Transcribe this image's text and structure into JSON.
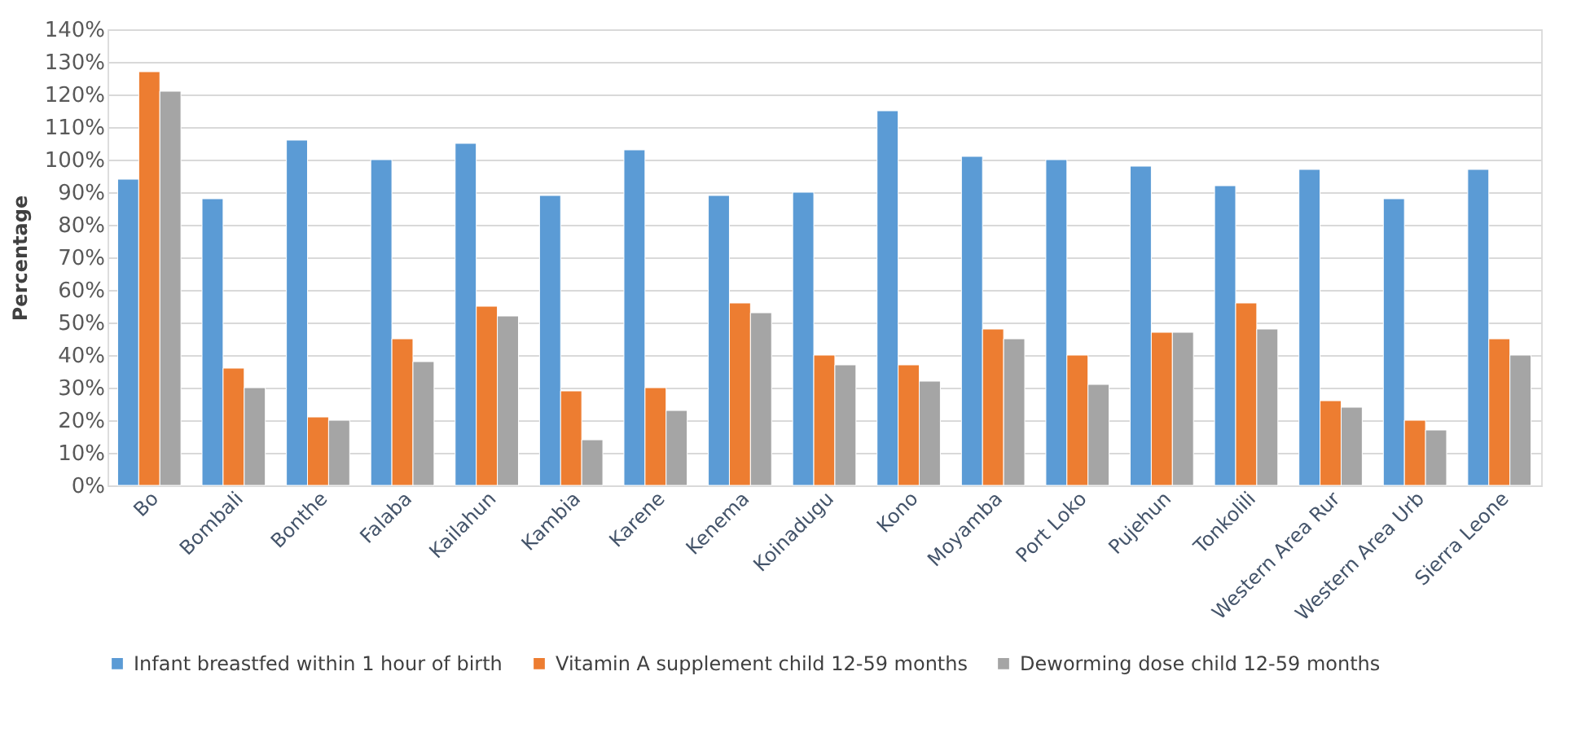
{
  "chart_data": {
    "type": "bar",
    "ylabel": "Percentage",
    "categories": [
      "Bo",
      "Bombali",
      "Bonthe",
      "Falaba",
      "Kailahun",
      "Kambia",
      "Karene",
      "Kenema",
      "Koinadugu",
      "Kono",
      "Moyamba",
      "Port Loko",
      "Pujehun",
      "Tonkolili",
      "Western Area Rur",
      "Western Area Urb",
      "Sierra Leone"
    ],
    "series": [
      {
        "name": "Infant breastfed within 1 hour of birth",
        "color": "#5b9bd5",
        "values": [
          94,
          88,
          106,
          100,
          105,
          89,
          103,
          89,
          90,
          115,
          101,
          100,
          98,
          92,
          97,
          88,
          97
        ]
      },
      {
        "name": "Vitamin A supplement child 12-59 months",
        "color": "#ed7d31",
        "values": [
          127,
          36,
          21,
          45,
          55,
          29,
          30,
          56,
          40,
          37,
          48,
          40,
          47,
          56,
          26,
          20,
          45
        ]
      },
      {
        "name": "Deworming dose child 12-59 months",
        "color": "#a5a5a5",
        "values": [
          121,
          30,
          20,
          38,
          52,
          14,
          23,
          53,
          37,
          32,
          45,
          31,
          47,
          48,
          24,
          17,
          40
        ]
      }
    ],
    "ylim": [
      0,
      140
    ],
    "yticks": [
      {
        "value": 0,
        "label": "0%"
      },
      {
        "value": 10,
        "label": "10%"
      },
      {
        "value": 20,
        "label": "20%"
      },
      {
        "value": 30,
        "label": "30%"
      },
      {
        "value": 40,
        "label": "40%"
      },
      {
        "value": 50,
        "label": "50%"
      },
      {
        "value": 60,
        "label": "60%"
      },
      {
        "value": 70,
        "label": "70%"
      },
      {
        "value": 80,
        "label": "80%"
      },
      {
        "value": 90,
        "label": "90%"
      },
      {
        "value": 100,
        "label": "100%"
      },
      {
        "value": 110,
        "label": "110%"
      },
      {
        "value": 120,
        "label": "120%"
      },
      {
        "value": 130,
        "label": "130%"
      },
      {
        "value": 140,
        "label": "140%"
      }
    ],
    "grid": "y",
    "legend": "bottom"
  }
}
